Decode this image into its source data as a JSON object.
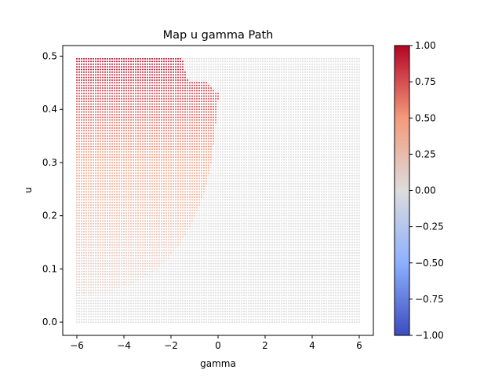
{
  "chart_data": {
    "type": "scatter",
    "title": "Map u gamma Path",
    "xlabel": "gamma",
    "ylabel": "u",
    "xlim": [
      -6.6,
      6.6
    ],
    "ylim": [
      -0.025,
      0.52
    ],
    "xticks": [
      -6,
      -4,
      -2,
      0,
      2,
      4,
      6
    ],
    "xtick_labels": [
      "−6",
      "−4",
      "−2",
      "0",
      "2",
      "4",
      "6"
    ],
    "yticks": [
      0.0,
      0.1,
      0.2,
      0.3,
      0.4,
      0.5
    ],
    "ytick_labels": [
      "0.0",
      "0.1",
      "0.2",
      "0.3",
      "0.4",
      "0.5"
    ],
    "grid": {
      "x_start": -6,
      "x_end": 6,
      "x_count": 121,
      "y_start": 0.0,
      "y_end": 0.495,
      "y_count": 100
    },
    "colormap": "coolwarm",
    "colorbar": {
      "range": [
        -1.0,
        1.0
      ],
      "ticks": [
        1.0,
        0.75,
        0.5,
        0.25,
        0.0,
        -0.25,
        -0.5,
        -0.75,
        -1.0
      ],
      "tick_labels": [
        "1.00",
        "0.75",
        "0.50",
        "0.25",
        "0.00",
        "−0.25",
        "−0.50",
        "−0.75",
        "−1.00"
      ]
    },
    "grid_lines": false,
    "legend": "none",
    "region_boundary": {
      "u": [
        0.05,
        0.06,
        0.07,
        0.08,
        0.1,
        0.12,
        0.15,
        0.18,
        0.2,
        0.25,
        0.3,
        0.35,
        0.4,
        0.42,
        0.43,
        0.44,
        0.45,
        0.455,
        0.5
      ],
      "gamma_max": [
        -6.0,
        -4.5,
        -3.8,
        -3.3,
        -2.6,
        -2.1,
        -1.6,
        -1.2,
        -0.95,
        -0.55,
        -0.3,
        -0.15,
        -0.05,
        0.0,
        0.0,
        -0.3,
        -0.5,
        -1.3,
        -1.55
      ]
    },
    "value_rule": "inside region: value = min(1, 0.08 + 0.9*u^1.6/0.495^1.6); outside region: 0.0"
  }
}
